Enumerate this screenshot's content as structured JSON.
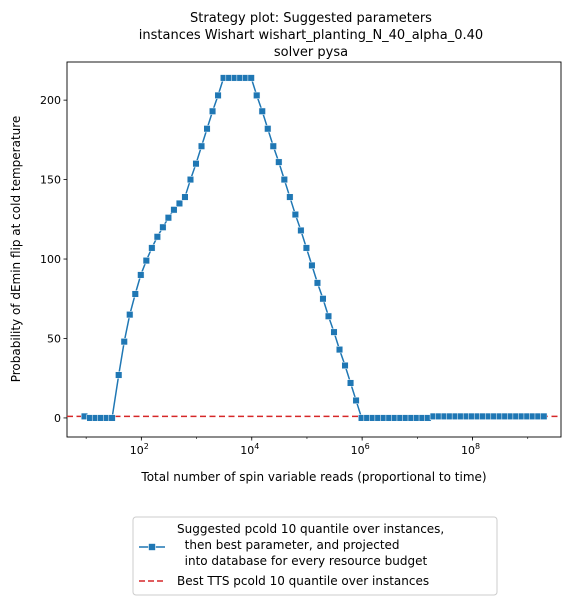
{
  "chart_data": {
    "type": "line",
    "title_lines": [
      "Strategy plot: Suggested parameters",
      "instances Wishart wishart_planting_N_40_alpha_0.40",
      "solver pysa"
    ],
    "xlabel": "Total number of spin variable reads (proportional to time)",
    "ylabel": "Probability of dEmin flip at cold temperature",
    "xscale": "log",
    "xlim": [
      4.5,
      4000000000.0
    ],
    "ylim": [
      -12,
      224
    ],
    "xticks": [
      {
        "value": 100,
        "base": "10",
        "exp": "2"
      },
      {
        "value": 10000,
        "base": "10",
        "exp": "4"
      },
      {
        "value": 1000000,
        "base": "10",
        "exp": "6"
      },
      {
        "value": 100000000,
        "base": "10",
        "exp": "8"
      }
    ],
    "yticks": [
      0,
      50,
      100,
      150,
      200
    ],
    "series": [
      {
        "name": "Suggested pcold 10 quantile over instances, then best parameter, and projected into database for every resource budget",
        "color": "#1f77b4",
        "marker": "square",
        "x_log10": [
          0.97,
          1.07,
          1.17,
          1.27,
          1.37,
          1.47,
          1.59,
          1.69,
          1.79,
          1.89,
          1.99,
          2.09,
          2.19,
          2.29,
          2.39,
          2.49,
          2.59,
          2.69,
          2.79,
          2.89,
          2.99,
          3.09,
          3.19,
          3.29,
          3.39,
          3.49,
          3.59,
          3.69,
          3.79,
          3.89,
          3.99,
          4.09,
          4.19,
          4.29,
          4.39,
          4.49,
          4.59,
          4.69,
          4.79,
          4.89,
          4.99,
          5.09,
          5.19,
          5.29,
          5.39,
          5.49,
          5.59,
          5.69,
          5.79,
          5.89,
          5.99,
          6.09,
          6.19,
          6.29,
          6.39,
          6.49,
          6.59,
          6.69,
          6.79,
          6.89,
          6.99,
          7.09,
          7.19,
          7.29,
          7.39,
          7.49,
          7.59,
          7.69,
          7.79,
          7.89,
          7.99,
          8.09,
          8.19,
          8.29,
          8.39,
          8.49,
          8.59,
          8.69,
          8.79,
          8.89,
          8.99,
          9.09,
          9.19,
          9.29
        ],
        "y": [
          1,
          0,
          0,
          0,
          0,
          0,
          27,
          48,
          65,
          78,
          90,
          99,
          107,
          114,
          120,
          126,
          131,
          135,
          139,
          150,
          160,
          171,
          182,
          193,
          203,
          214,
          214,
          214,
          214,
          214,
          214,
          203,
          193,
          182,
          171,
          161,
          150,
          139,
          128,
          118,
          107,
          96,
          85,
          75,
          64,
          54,
          43,
          33,
          22,
          11,
          0,
          0,
          0,
          0,
          0,
          0,
          0,
          0,
          0,
          0,
          0,
          0,
          0,
          1,
          1,
          1,
          1,
          1,
          1,
          1,
          1,
          1,
          1,
          1,
          1,
          1,
          1,
          1,
          1,
          1,
          1,
          1,
          1,
          1
        ]
      },
      {
        "name": "Best TTS pcold 10 quantile over instances",
        "color": "#d62728",
        "style": "dashed",
        "hline": 1
      }
    ],
    "legend": {
      "placement": "bottom-center-below-axes",
      "entries": [
        {
          "lines": [
            "Suggested pcold 10 quantile over instances,",
            "  then best parameter, and projected",
            "  into database for every resource budget"
          ]
        },
        {
          "lines": [
            "Best TTS pcold 10 quantile over instances"
          ]
        }
      ]
    }
  }
}
